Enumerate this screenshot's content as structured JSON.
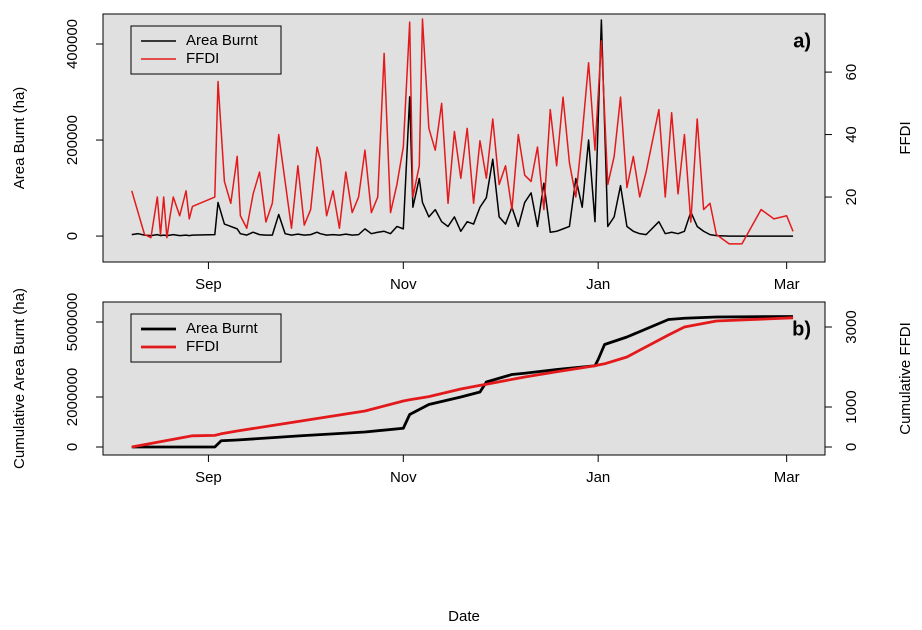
{
  "chart_data": [
    {
      "type": "line",
      "panel_label": "a)",
      "y_label": "Area Burnt (ha)",
      "y2_label": "FFDI",
      "line_width": 1.5,
      "legend": "top-left",
      "xlim": [
        -2,
        224
      ],
      "xticks": [
        {
          "value": 31,
          "label": "Sep"
        },
        {
          "value": 92,
          "label": "Nov"
        },
        {
          "value": 153,
          "label": "Jan"
        },
        {
          "value": 212,
          "label": "Mar"
        }
      ],
      "ylim": [
        -54000,
        462500
      ],
      "yticks": [
        0,
        200000,
        400000
      ],
      "y2lim": [
        -0.8,
        78.6
      ],
      "y2ticks": [
        20,
        40,
        60
      ],
      "x": [
        7,
        9,
        11,
        13,
        15,
        16,
        17,
        18,
        19,
        20,
        22,
        24,
        25,
        26,
        33,
        34,
        36,
        38,
        40,
        41,
        43,
        45,
        47,
        49,
        51,
        53,
        55,
        57,
        59,
        61,
        63,
        65,
        66,
        68,
        70,
        72,
        74,
        76,
        78,
        80,
        82,
        84,
        86,
        88,
        90,
        92,
        94,
        95,
        97,
        98,
        100,
        102,
        104,
        106,
        108,
        110,
        112,
        114,
        116,
        118,
        120,
        122,
        124,
        126,
        128,
        130,
        132,
        134,
        136,
        138,
        140,
        142,
        144,
        146,
        148,
        150,
        152,
        154,
        156,
        158,
        160,
        162,
        164,
        166,
        168,
        172,
        174,
        176,
        178,
        180,
        182,
        184,
        186,
        188,
        190,
        194,
        198,
        204,
        208,
        212,
        214
      ],
      "series": [
        {
          "name": "Area Burnt",
          "color": "#000000",
          "values": [
            3000,
            5000,
            2000,
            1000,
            3000,
            1000,
            2000,
            1000,
            2000,
            3000,
            1000,
            2000,
            1000,
            2000,
            3000,
            70000,
            25000,
            20000,
            15000,
            5000,
            2000,
            8000,
            3000,
            2000,
            2000,
            45000,
            5000,
            2000,
            4000,
            2000,
            3000,
            8000,
            5000,
            2000,
            3000,
            2000,
            4000,
            2000,
            3000,
            15000,
            5000,
            8000,
            10000,
            5000,
            20000,
            15000,
            290000,
            60000,
            120000,
            70000,
            40000,
            55000,
            30000,
            20000,
            40000,
            10000,
            30000,
            25000,
            60000,
            80000,
            160000,
            40000,
            25000,
            60000,
            20000,
            70000,
            90000,
            20000,
            110000,
            8000,
            10000,
            15000,
            20000,
            120000,
            60000,
            200000,
            30000,
            450000,
            20000,
            40000,
            105000,
            20000,
            10000,
            5000,
            3000,
            30000,
            5000,
            8000,
            5000,
            10000,
            50000,
            20000,
            10000,
            3000,
            1000,
            0,
            0,
            0,
            0,
            0,
            0
          ]
        },
        {
          "name": "FFDI",
          "color": "#e31a1c",
          "axis": "y2",
          "values": [
            22,
            15,
            8,
            7,
            20,
            8,
            20,
            7,
            14,
            20,
            14,
            22,
            13,
            17,
            20,
            57,
            25,
            18,
            33,
            14,
            10,
            21,
            28,
            12,
            18,
            40,
            25,
            10,
            30,
            11,
            16,
            36,
            32,
            14,
            22,
            10,
            28,
            15,
            20,
            35,
            15,
            20,
            66,
            15,
            24,
            36,
            76,
            20,
            30,
            77,
            42,
            35,
            50,
            18,
            41,
            26,
            42,
            18,
            38,
            26,
            45,
            24,
            30,
            16,
            40,
            27,
            25,
            36,
            16,
            48,
            30,
            52,
            31,
            20,
            40,
            63,
            35,
            70,
            24,
            33,
            52,
            23,
            33,
            20,
            28,
            48,
            20,
            47,
            21,
            40,
            12,
            45,
            16,
            18,
            8,
            5,
            5,
            16,
            13,
            14,
            9
          ]
        }
      ]
    },
    {
      "type": "line",
      "panel_label": "b)",
      "y_label": "Cumulative Area Burnt (ha)",
      "y2_label": "Cumulative FFDI",
      "x_label": "Date",
      "line_width": 2.8,
      "legend": "top-left",
      "xlim": [
        -2,
        224
      ],
      "xticks": [
        {
          "value": 31,
          "label": "Sep"
        },
        {
          "value": 92,
          "label": "Nov"
        },
        {
          "value": 153,
          "label": "Jan"
        },
        {
          "value": 212,
          "label": "Mar"
        }
      ],
      "ylim": [
        -320000,
        5800000
      ],
      "yticks": [
        0,
        2000000,
        5000000
      ],
      "y2lim": [
        -200,
        3625
      ],
      "y2ticks": [
        0,
        1000,
        3000
      ],
      "x": [
        7,
        26,
        33,
        35,
        40,
        60,
        80,
        92,
        94,
        100,
        110,
        116,
        118,
        126,
        130,
        140,
        152,
        153,
        155,
        162,
        175,
        180,
        190,
        214
      ],
      "series": [
        {
          "name": "Area Burnt",
          "color": "#000000",
          "values": [
            0,
            0,
            0,
            250000,
            280000,
            450000,
            600000,
            750000,
            1300000,
            1700000,
            2000000,
            2200000,
            2600000,
            2900000,
            2950000,
            3100000,
            3250000,
            3500000,
            4100000,
            4400000,
            5100000,
            5150000,
            5200000,
            5220000
          ]
        },
        {
          "name": "FFDI",
          "color": "#e31a1c",
          "axis": "y2",
          "values": [
            0,
            280,
            290,
            330,
            400,
            650,
            900,
            1150,
            1180,
            1260,
            1450,
            1540,
            1570,
            1690,
            1750,
            1880,
            2030,
            2050,
            2080,
            2250,
            2800,
            3000,
            3150,
            3230
          ]
        }
      ]
    }
  ]
}
